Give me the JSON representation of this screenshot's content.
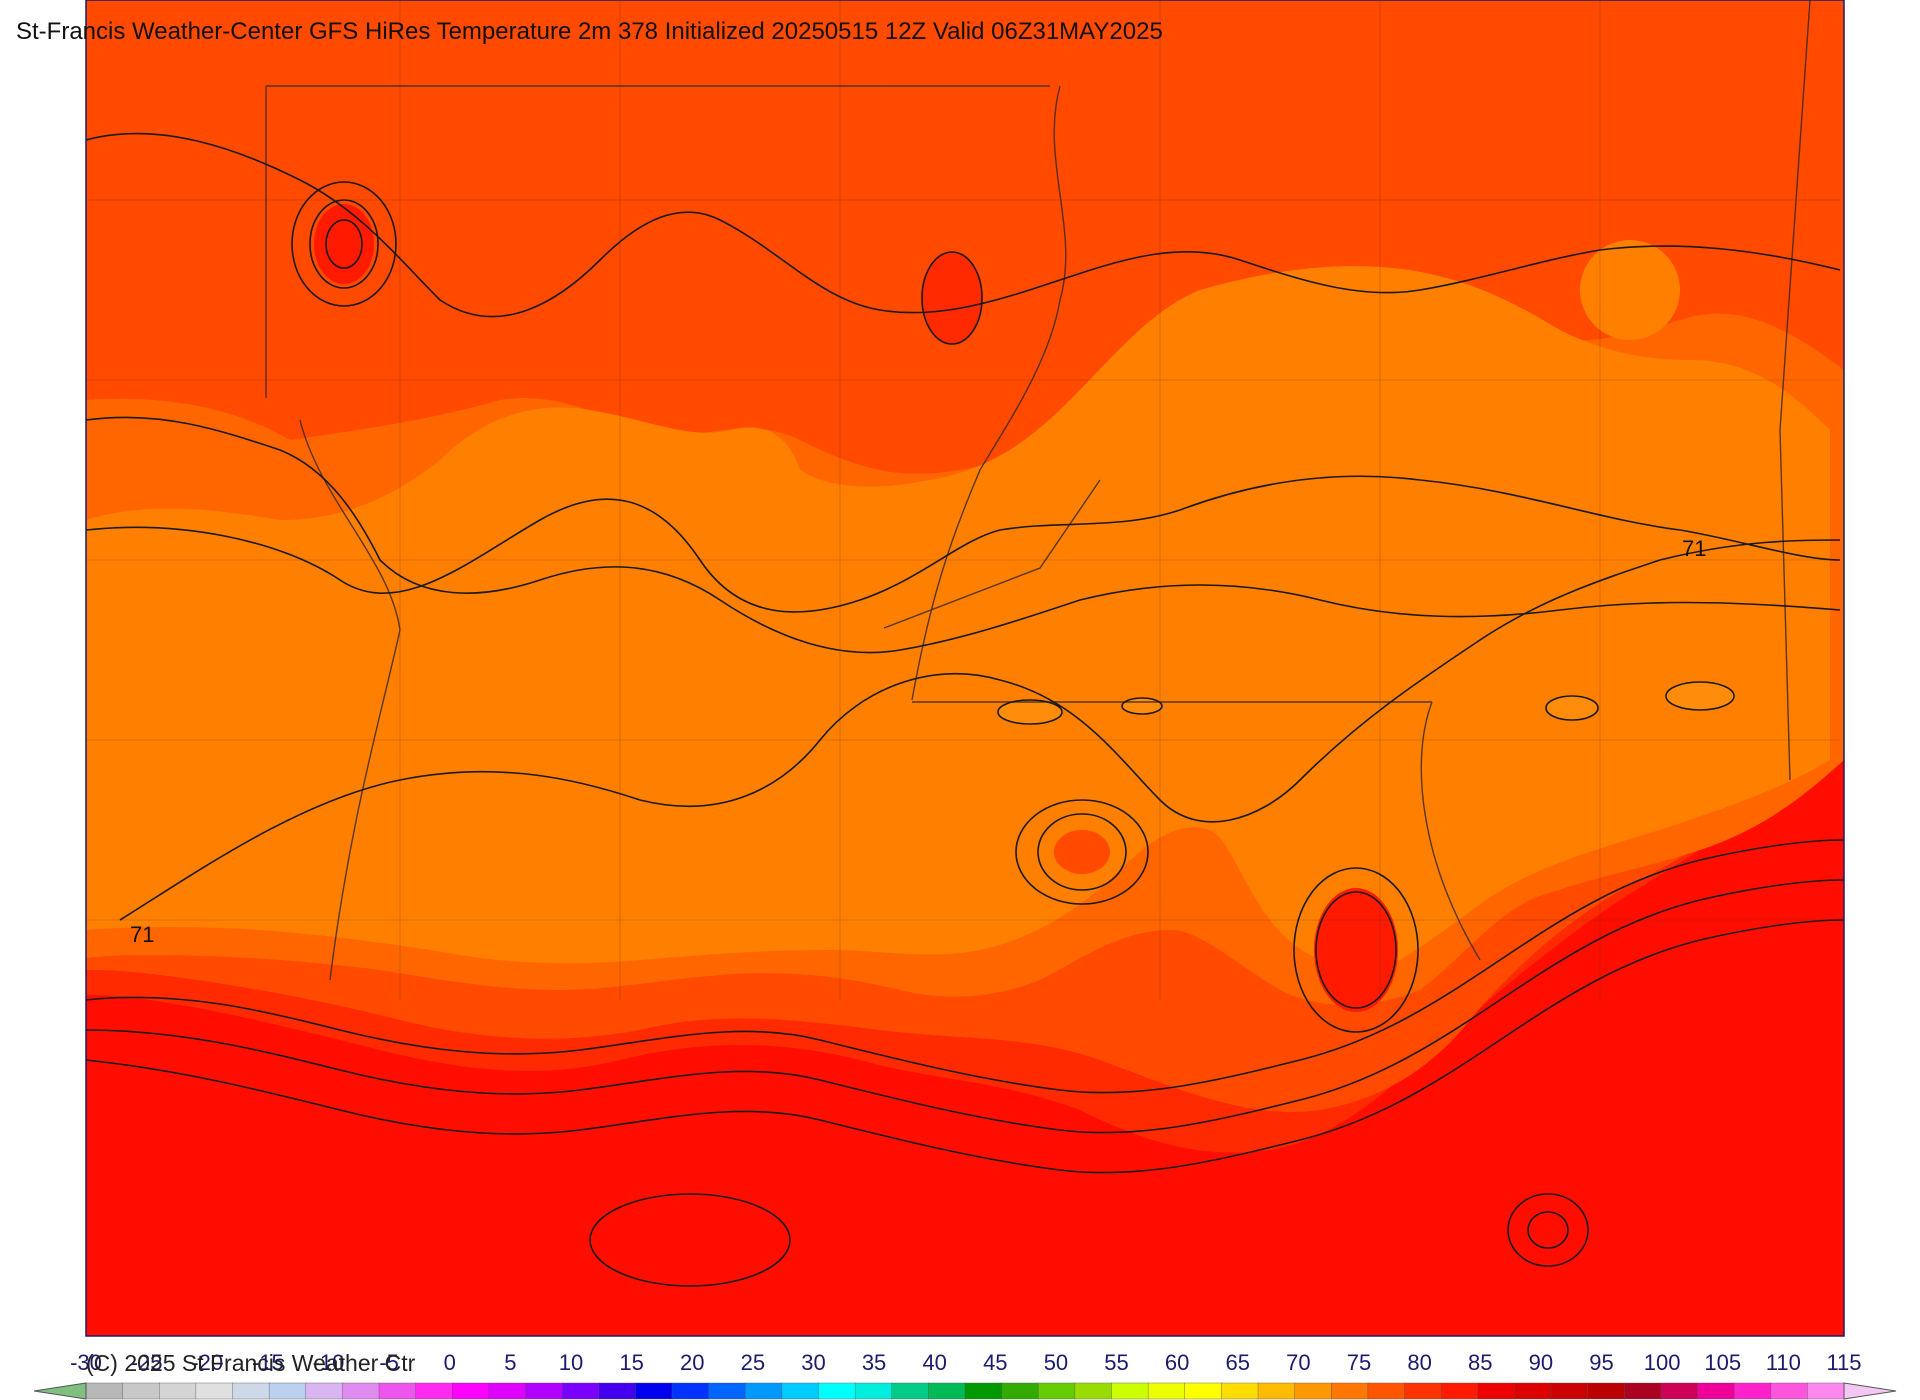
{
  "header": {
    "title": "St-Francis Weather-Center GFS HiRes Temperature 2m  378 Initialized 20250515 12Z Valid 06Z31MAY2025"
  },
  "footer": {
    "copyright": "(C) 2025 St Francis Weather Ctr"
  },
  "map": {
    "field": "Temperature 2m",
    "contour_labels": [
      "71",
      "71"
    ],
    "colors": {
      "band_60_65": "#ff7f00",
      "band_65_70": "#ff6600",
      "band_70_75": "#ff4a00",
      "band_75_80": "#ff2a00",
      "band_80_85": "#ff0e00",
      "warm_pocket": "#ff8c0a",
      "contour": "#1a1a1a",
      "state_border": "#3b2a1e",
      "frame": "#1a1a6e"
    }
  },
  "colorbar": {
    "tick_labels": [
      "-30",
      "-25",
      "-20",
      "-15",
      "-10",
      "-5",
      "0",
      "5",
      "10",
      "15",
      "20",
      "25",
      "30",
      "35",
      "40",
      "45",
      "50",
      "55",
      "60",
      "65",
      "70",
      "75",
      "80",
      "85",
      "90",
      "95",
      "100",
      "105",
      "110",
      "115"
    ],
    "segment_colors": [
      "#b8b8b8",
      "#c8c8c8",
      "#d4d4d4",
      "#e0e0e0",
      "#cfd8e8",
      "#bcd0f0",
      "#d9b6f2",
      "#e08bf0",
      "#ee55ee",
      "#ff2af0",
      "#ff00ff",
      "#e000ff",
      "#b000ff",
      "#7a00ff",
      "#4400ee",
      "#0000ee",
      "#0033ff",
      "#0066ff",
      "#0099ff",
      "#00ccff",
      "#00ffff",
      "#00eedd",
      "#00cc88",
      "#00bb55",
      "#009900",
      "#33aa00",
      "#66cc00",
      "#99dd00",
      "#ccff00",
      "#eeff00",
      "#ffff00",
      "#ffdd00",
      "#ffbb00",
      "#ff9900",
      "#ff7700",
      "#ff5500",
      "#ff3300",
      "#ff1a00",
      "#ee0000",
      "#dd0000",
      "#cc0000",
      "#bb0000",
      "#aa0022",
      "#cc0055",
      "#ee0099",
      "#ff22cc",
      "#ff55dd",
      "#ff88ee"
    ],
    "left_end_color": "#7fbf7f",
    "right_end_color": "#f2c8f2"
  }
}
